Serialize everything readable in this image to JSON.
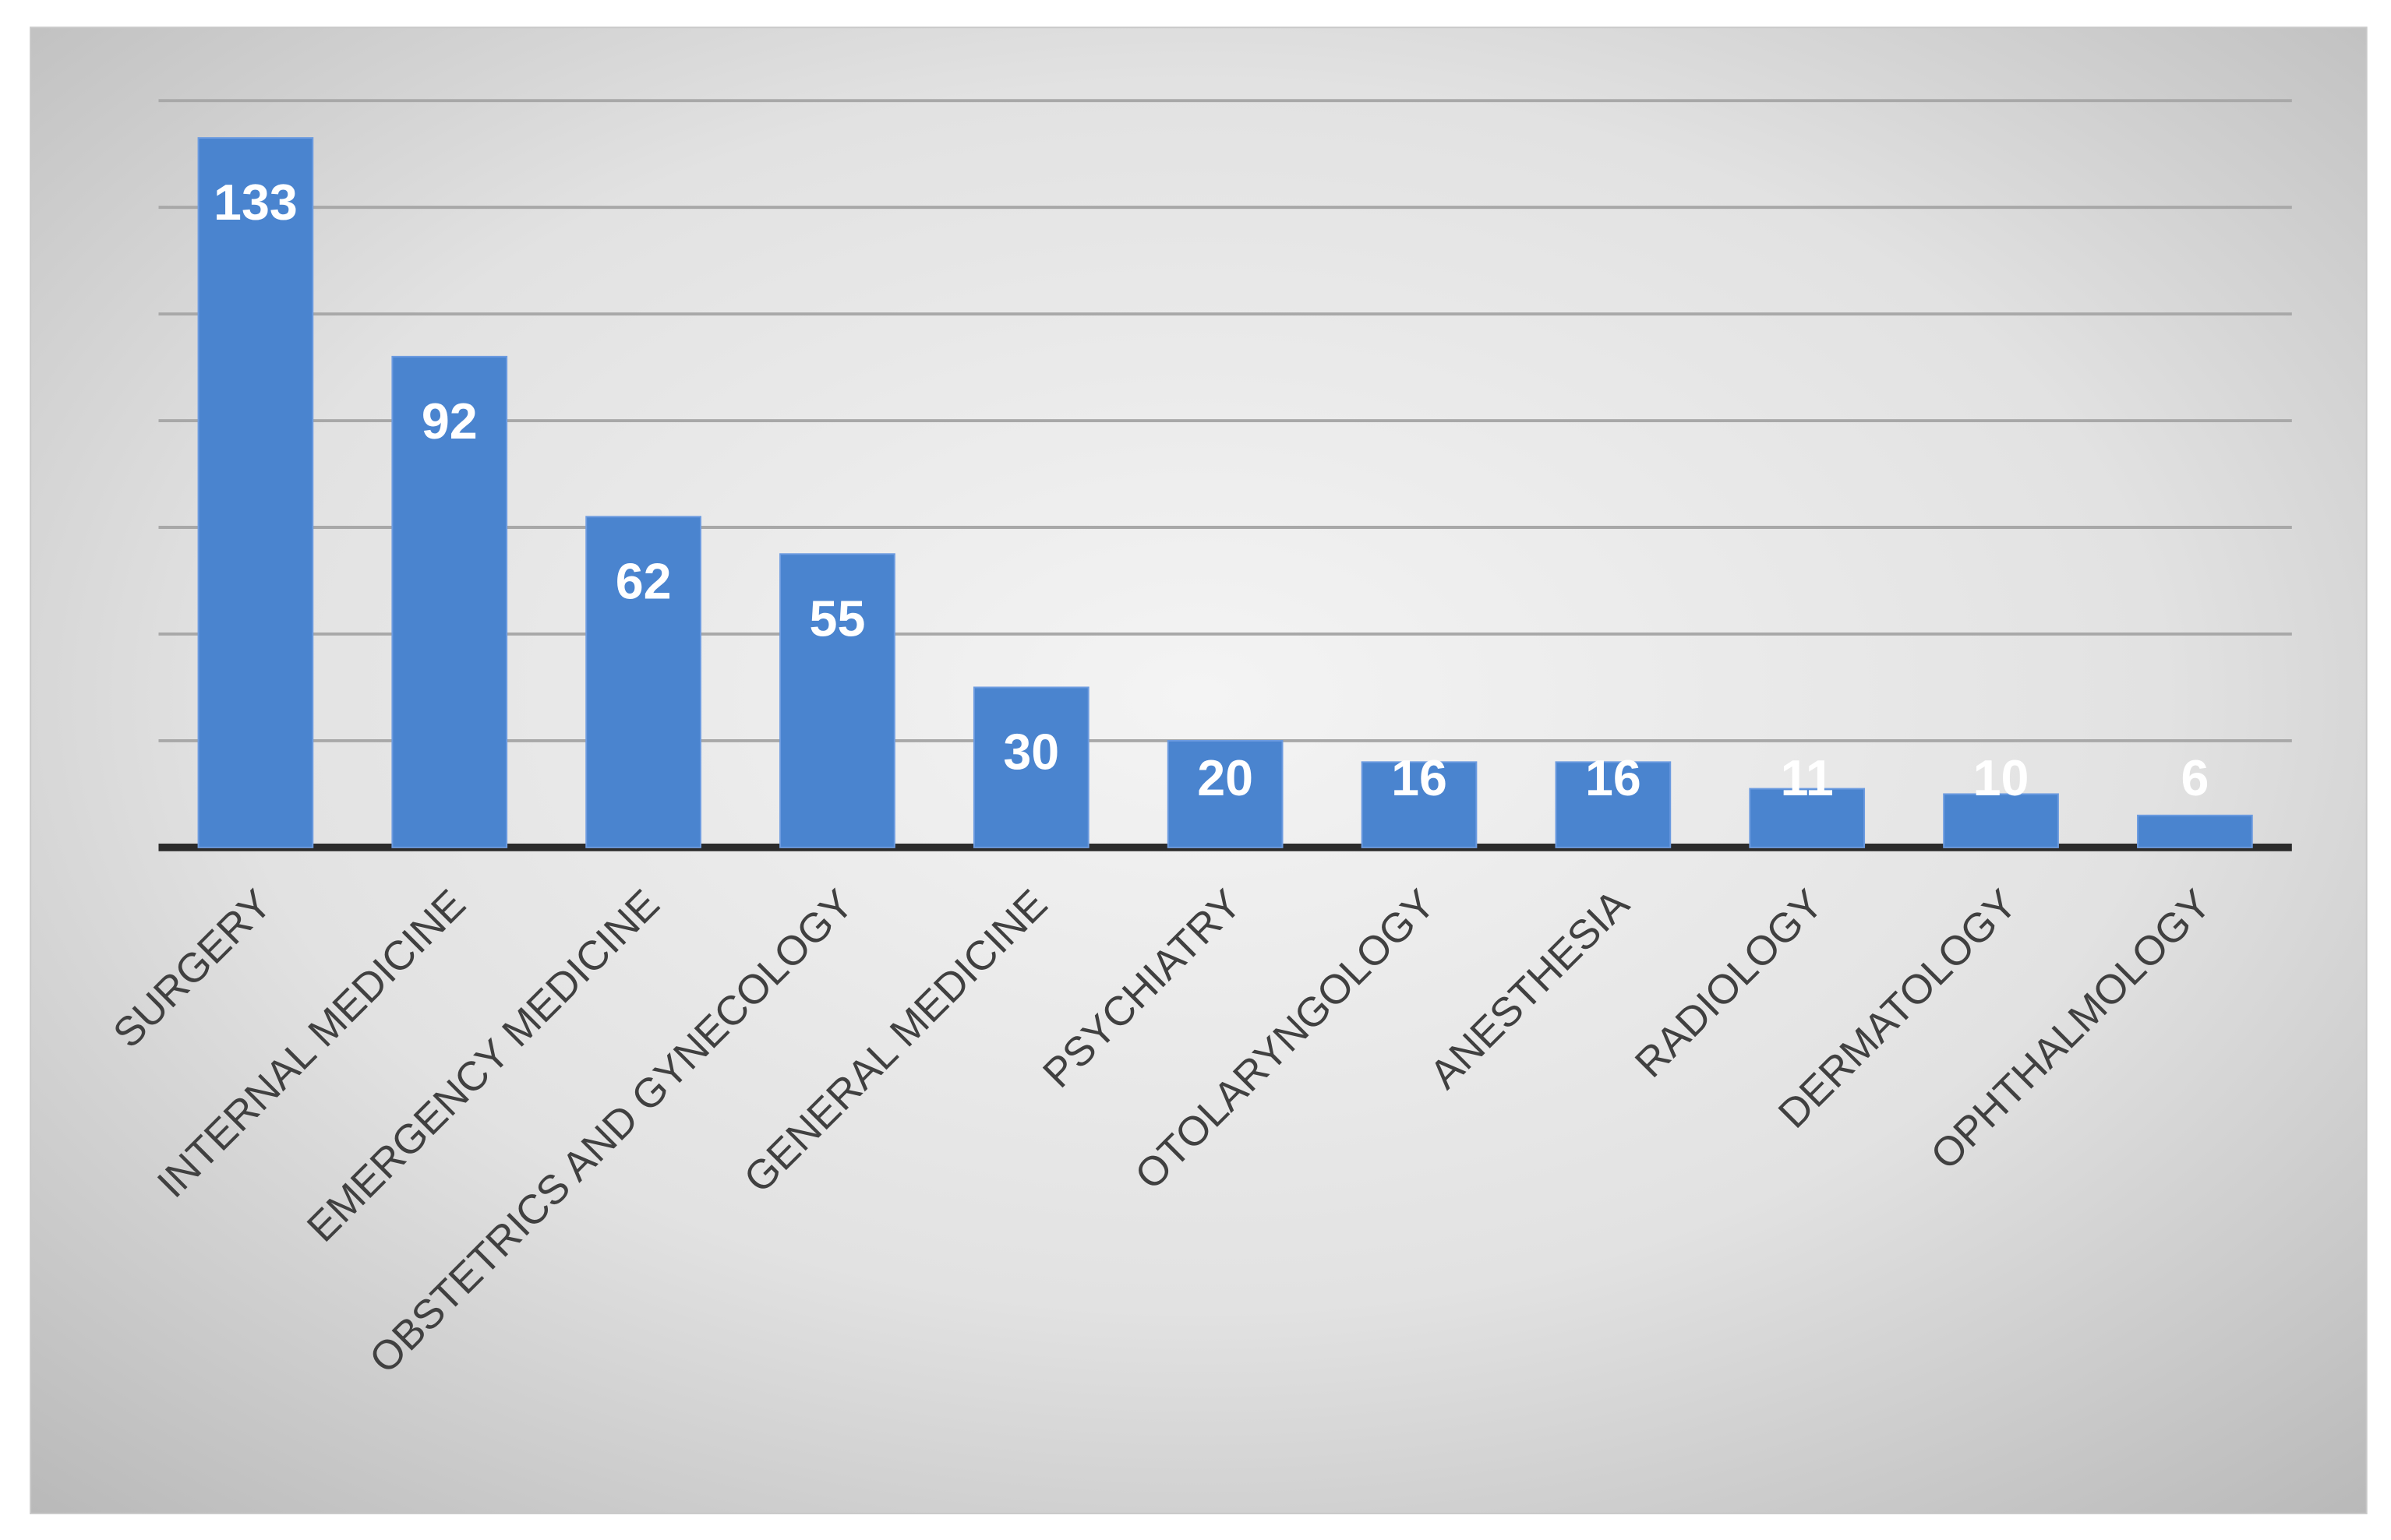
{
  "chart_data": {
    "type": "bar",
    "categories": [
      "SURGERY",
      "INTERNAL MEDICINE",
      "EMERGENCY MEDICINE",
      "OBSTETRICS AND GYNECOLOGY",
      "GENERAL MEDICINE",
      "PSYCHIATRY",
      "OTOLARYNGOLOGY",
      "ANESTHESIA",
      "RADIOLOGY",
      "DERMATOLOGY",
      "OPHTHALMOLOGY"
    ],
    "values": [
      133,
      92,
      62,
      55,
      30,
      20,
      16,
      16,
      11,
      10,
      6
    ],
    "color": "#4a84cf",
    "ylim": [
      0,
      140
    ],
    "yticks": [
      0,
      20,
      40,
      60,
      80,
      100,
      120,
      140
    ],
    "show_ytick_labels": false,
    "grid": true
  }
}
